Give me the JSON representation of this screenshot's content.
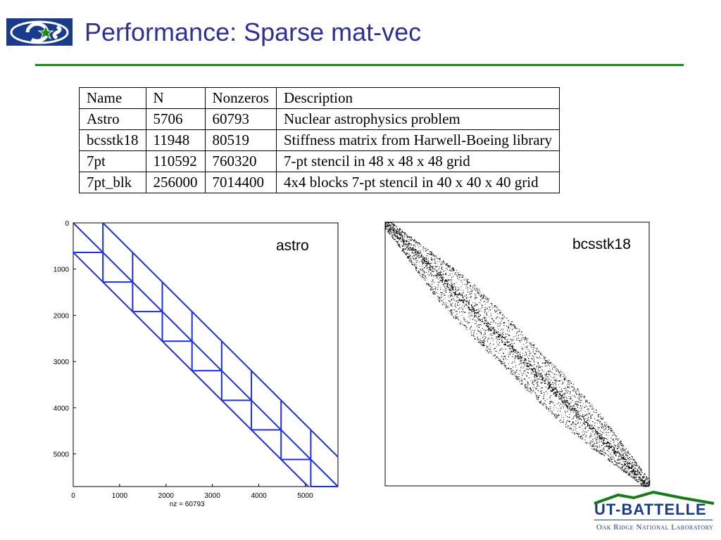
{
  "title": "Performance: Sparse mat-vec",
  "table": {
    "headers": [
      "Name",
      "N",
      "Nonzeros",
      "Description"
    ],
    "rows": [
      [
        "Astro",
        "5706",
        "60793",
        "Nuclear astrophysics problem"
      ],
      [
        "bcsstk18",
        "11948",
        "80519",
        "Stiffness matrix from Harwell-Boeing library"
      ],
      [
        "7pt",
        "110592",
        "760320",
        "7-pt stencil in 48 x 48 x 48 grid"
      ],
      [
        "7pt_blk",
        "256000",
        "7014400",
        "4x4 blocks 7-pt stencil in 40 x 40 x 40 grid"
      ]
    ]
  },
  "chart_data": [
    {
      "type": "scatter",
      "title": "astro",
      "xlabel": "nz = 60793",
      "ylabel": "",
      "xlim": [
        0,
        5706
      ],
      "ylim": [
        5706,
        0
      ],
      "x_ticks": [
        "0",
        "1000",
        "2000",
        "3000",
        "4000",
        "5000"
      ],
      "y_ticks": [
        "0",
        "1000",
        "2000",
        "3000",
        "4000",
        "5000"
      ],
      "color": "#1f2ee0"
    },
    {
      "type": "scatter",
      "title": "bcsstk18",
      "color": "#000000"
    }
  ],
  "footer": {
    "logo_name": "UT-BATTELLE",
    "logo_sub": "Oak Ridge National Laboratory"
  }
}
